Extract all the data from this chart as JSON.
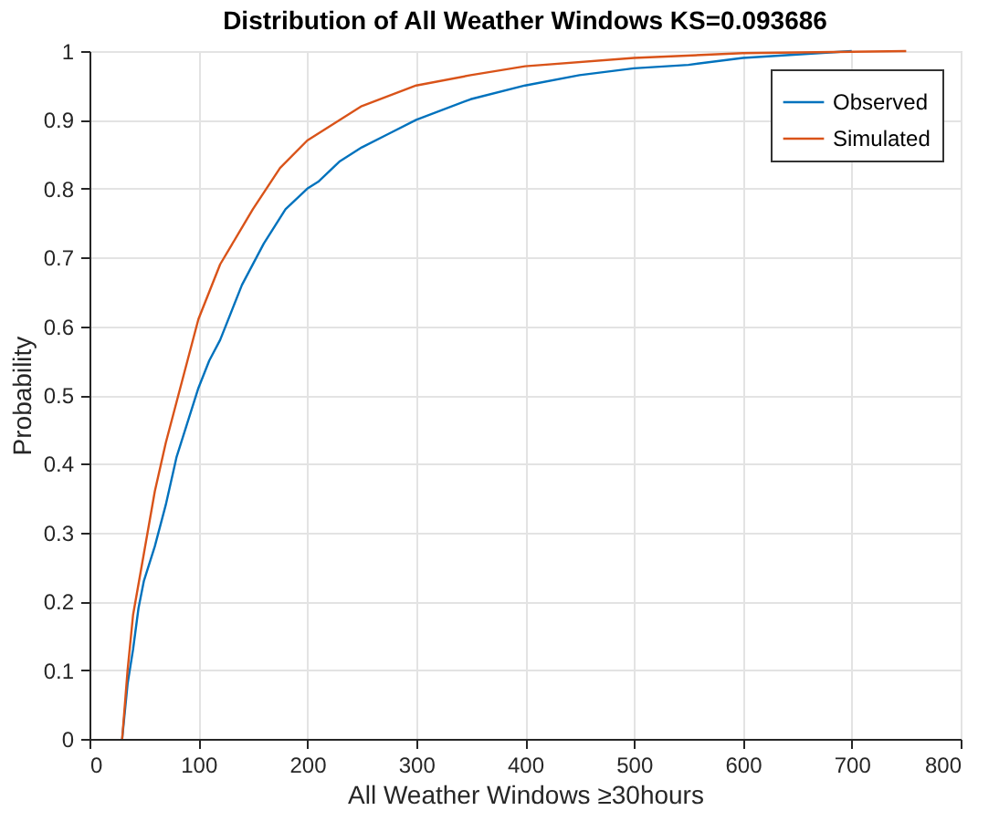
{
  "chart_data": {
    "type": "line",
    "title": "Distribution of All Weather Windows KS=0.093686",
    "xlabel": "All Weather Windows ≥30hours",
    "ylabel": "Probability",
    "xlim": [
      0,
      800
    ],
    "xticks": [
      0,
      100,
      200,
      300,
      400,
      500,
      600,
      700,
      800
    ],
    "ylim": [
      0,
      1
    ],
    "yticks": [
      0,
      0.1,
      0.2,
      0.3,
      0.4,
      0.5,
      0.6,
      0.7,
      0.8,
      0.9,
      1
    ],
    "grid": true,
    "legend": "top right",
    "line_style": "solid",
    "marker": "none",
    "series": [
      {
        "name": "Observed",
        "color": "#0072bd",
        "x": [
          30,
          35,
          40,
          45,
          50,
          60,
          70,
          80,
          90,
          100,
          110,
          120,
          140,
          160,
          180,
          200,
          210,
          230,
          250,
          275,
          300,
          350,
          400,
          450,
          500,
          550,
          600,
          650,
          700
        ],
        "values": [
          0,
          0.08,
          0.13,
          0.19,
          0.23,
          0.28,
          0.34,
          0.41,
          0.46,
          0.51,
          0.55,
          0.58,
          0.66,
          0.72,
          0.77,
          0.8,
          0.81,
          0.84,
          0.86,
          0.88,
          0.9,
          0.93,
          0.95,
          0.965,
          0.975,
          0.98,
          0.99,
          0.995,
          1.0
        ]
      },
      {
        "name": "Simulated",
        "color": "#d95319",
        "x": [
          30,
          35,
          40,
          50,
          60,
          70,
          80,
          90,
          100,
          120,
          150,
          175,
          200,
          250,
          300,
          350,
          400,
          500,
          600,
          750
        ],
        "values": [
          0,
          0.1,
          0.18,
          0.27,
          0.36,
          0.43,
          0.49,
          0.55,
          0.61,
          0.69,
          0.77,
          0.83,
          0.87,
          0.92,
          0.95,
          0.965,
          0.978,
          0.99,
          0.997,
          1.0
        ]
      }
    ]
  }
}
